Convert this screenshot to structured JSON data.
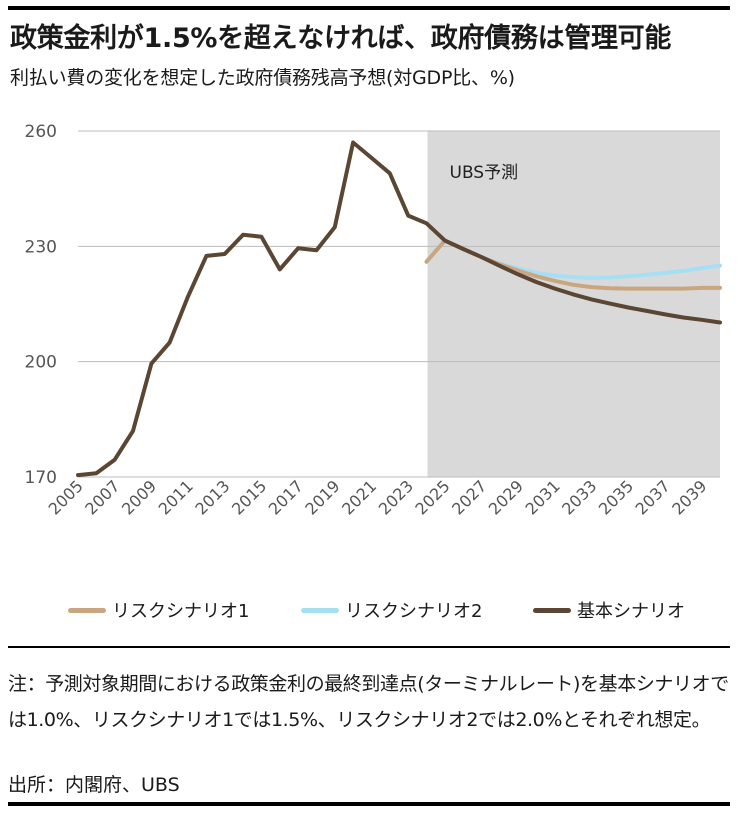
{
  "header": {
    "title": "政策金利が1.5%を超えなければ、政府債務は管理可能",
    "subtitle": "利払い費の変化を想定した政府債務残高予想(対GDP比、%)"
  },
  "chart_data": {
    "type": "line",
    "title": "",
    "xlabel": "",
    "ylabel": "",
    "ylim": [
      170,
      260
    ],
    "xlim": [
      2005,
      2040
    ],
    "yticks": [
      "170",
      "200",
      "230",
      "260"
    ],
    "xticks": [
      "2005",
      "2007",
      "2009",
      "2011",
      "2013",
      "2015",
      "2017",
      "2019",
      "2021",
      "2023",
      "2025",
      "2027",
      "2029",
      "2031",
      "2033",
      "2035",
      "2037",
      "2039"
    ],
    "forecast_label": "UBS予測",
    "forecast_start": 2024,
    "grid": true,
    "legend_position": "bottom",
    "series": [
      {
        "name": "リスクシナリオ1",
        "color": "#c9a680",
        "x": [
          2024,
          2025,
          2026,
          2027,
          2028,
          2029,
          2030,
          2031,
          2032,
          2033,
          2034,
          2035,
          2036,
          2037,
          2038,
          2039,
          2040
        ],
        "values": [
          226,
          231.5,
          229.3,
          227.2,
          225.3,
          223.7,
          222.2,
          221,
          220,
          219.4,
          219.1,
          219,
          219,
          219,
          219,
          219.2,
          219.2
        ]
      },
      {
        "name": "リスクシナリオ2",
        "color": "#a6def4",
        "x": [
          2024,
          2025,
          2026,
          2027,
          2028,
          2029,
          2030,
          2031,
          2032,
          2033,
          2034,
          2035,
          2036,
          2037,
          2038,
          2039,
          2040
        ],
        "values": [
          226,
          231.5,
          229.3,
          227.2,
          225.5,
          224.2,
          223.1,
          222.4,
          222,
          221.8,
          221.9,
          222.2,
          222.6,
          223.1,
          223.6,
          224.3,
          225
        ]
      },
      {
        "name": "基本シナリオ",
        "color": "#5a4633",
        "x": [
          2005,
          2006,
          2007,
          2008,
          2009,
          2010,
          2011,
          2012,
          2013,
          2014,
          2015,
          2016,
          2017,
          2018,
          2019,
          2020,
          2021,
          2022,
          2023,
          2024,
          2025,
          2026,
          2027,
          2028,
          2029,
          2030,
          2031,
          2032,
          2033,
          2034,
          2035,
          2036,
          2037,
          2038,
          2039,
          2040
        ],
        "values": [
          170.5,
          171,
          174.5,
          182,
          199.5,
          205,
          217,
          227.5,
          228,
          233,
          232.5,
          224,
          229.5,
          229,
          235,
          257,
          253,
          249,
          238,
          236,
          231.5,
          229.3,
          227.2,
          224.9,
          222.7,
          220.7,
          219,
          217.5,
          216.2,
          215.1,
          214.1,
          213.2,
          212.3,
          211.5,
          210.9,
          210.2
        ]
      }
    ]
  },
  "note": "注：予測対象期間における政策金利の最終到達点(ターミナルレート)を基本シナリオでは1.0%、リスクシナリオ1では1.5%、リスクシナリオ2では2.0%とそれぞれ想定。",
  "source": "出所：内閣府、UBS"
}
